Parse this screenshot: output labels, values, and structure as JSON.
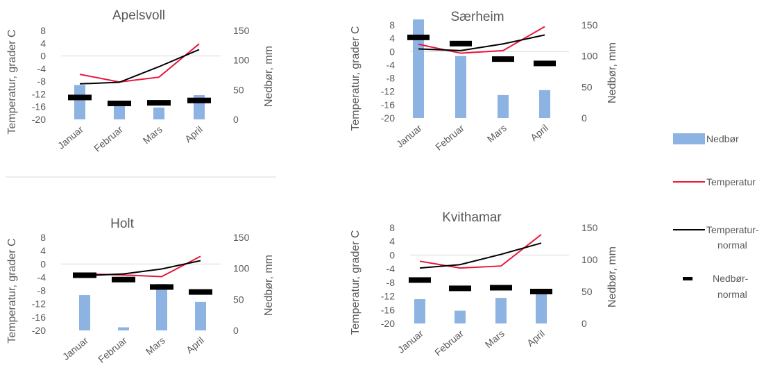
{
  "colors": {
    "precip": "#8DB3E2",
    "temperature": "#E8163B",
    "temp_normal": "#000000",
    "precip_normal": "#000000",
    "axis_text": "#595959",
    "baseline": "#D9D9D9"
  },
  "legend": {
    "precip": "Nedbør",
    "temperature": "Temperatur",
    "temp_normal_lines": [
      "Temperatur-",
      "normal"
    ],
    "precip_normal_lines": [
      "Nedbør-",
      "normal"
    ]
  },
  "chart_data": [
    {
      "type": "bar+line",
      "title": "Apelsvoll",
      "categories": [
        "Januar",
        "Februar",
        "Mars",
        "April"
      ],
      "ylabel_left": "Temperatur, grader C",
      "ylabel_right": "Nedbør, mm",
      "ylim_left": [
        -20,
        8
      ],
      "yticks_left": [
        8,
        4,
        0,
        -4,
        -8,
        -12,
        -16,
        -20
      ],
      "ylim_right": [
        0,
        150
      ],
      "yticks_right": [
        150,
        100,
        50,
        0
      ],
      "series": [
        {
          "name": "Nedbør",
          "type": "bar",
          "axis": "right",
          "values": [
            58,
            29,
            20,
            41
          ]
        },
        {
          "name": "Nedbør-normal",
          "type": "marker",
          "axis": "right",
          "values": [
            37,
            27,
            28,
            32
          ]
        },
        {
          "name": "Temperatur",
          "type": "line",
          "axis": "left",
          "values": [
            -5.8,
            -8.2,
            -6.7,
            3.8
          ]
        },
        {
          "name": "Temperatur-normal",
          "type": "line",
          "axis": "left",
          "values": [
            -8.8,
            -8.3,
            -3.4,
            2.0
          ]
        }
      ]
    },
    {
      "type": "bar+line",
      "title": "Særheim",
      "categories": [
        "Januar",
        "Februar",
        "Mars",
        "April"
      ],
      "ylabel_left": "Temperatur, grader C",
      "ylabel_right": "Nedbør, mm",
      "ylim_left": [
        -20,
        8
      ],
      "yticks_left": [
        8,
        4,
        0,
        -4,
        -8,
        -12,
        -16,
        -20
      ],
      "ylim_right": [
        0,
        150
      ],
      "yticks_right": [
        150,
        100,
        50,
        0
      ],
      "series": [
        {
          "name": "Nedbør",
          "type": "bar",
          "axis": "right",
          "values": [
            160,
            100,
            37,
            45
          ]
        },
        {
          "name": "Nedbør-normal",
          "type": "marker",
          "axis": "right",
          "values": [
            130,
            120,
            95,
            88
          ]
        },
        {
          "name": "Temperatur",
          "type": "line",
          "axis": "left",
          "values": [
            2.2,
            -0.5,
            0.3,
            7.5
          ]
        },
        {
          "name": "Temperatur-normal",
          "type": "line",
          "axis": "left",
          "values": [
            0.8,
            0.3,
            2.3,
            5.0
          ]
        }
      ]
    },
    {
      "type": "bar+line",
      "title": "Holt",
      "categories": [
        "Januar",
        "Februar",
        "Mars",
        "April"
      ],
      "ylabel_left": "Temperatur, grader C",
      "ylabel_right": "Nedbør, mm",
      "ylim_left": [
        -20,
        8
      ],
      "yticks_left": [
        8,
        4,
        0,
        -4,
        -8,
        -12,
        -16,
        -20
      ],
      "ylim_right": [
        0,
        150
      ],
      "yticks_right": [
        150,
        100,
        50,
        0
      ],
      "series": [
        {
          "name": "Nedbør",
          "type": "bar",
          "axis": "right",
          "values": [
            57,
            5,
            75,
            46
          ]
        },
        {
          "name": "Nedbør-normal",
          "type": "marker",
          "axis": "right",
          "values": [
            89,
            82,
            70,
            62
          ]
        },
        {
          "name": "Temperatur",
          "type": "line",
          "axis": "left",
          "values": [
            -3.0,
            -3.3,
            -3.8,
            2.3
          ]
        },
        {
          "name": "Temperatur-normal",
          "type": "line",
          "axis": "left",
          "values": [
            -3.5,
            -3.0,
            -1.5,
            1.0
          ]
        }
      ]
    },
    {
      "type": "bar+line",
      "title": "Kvithamar",
      "categories": [
        "Januar",
        "Februar",
        "Mars",
        "April"
      ],
      "ylabel_left": "Temperatur, grader C",
      "ylabel_right": "Nedbør, mm",
      "ylim_left": [
        -20,
        8
      ],
      "yticks_left": [
        8,
        4,
        0,
        -4,
        -8,
        -12,
        -16,
        -20
      ],
      "ylim_right": [
        0,
        150
      ],
      "yticks_right": [
        150,
        100,
        50,
        0
      ],
      "series": [
        {
          "name": "Nedbør",
          "type": "bar",
          "axis": "right",
          "values": [
            38,
            20,
            40,
            50
          ]
        },
        {
          "name": "Nedbør-normal",
          "type": "marker",
          "axis": "right",
          "values": [
            68,
            55,
            56,
            50
          ]
        },
        {
          "name": "Temperatur",
          "type": "line",
          "axis": "left",
          "values": [
            -1.8,
            -3.8,
            -3.2,
            6.0
          ]
        },
        {
          "name": "Temperatur-normal",
          "type": "line",
          "axis": "left",
          "values": [
            -3.8,
            -2.8,
            0.2,
            3.5
          ]
        }
      ]
    }
  ]
}
